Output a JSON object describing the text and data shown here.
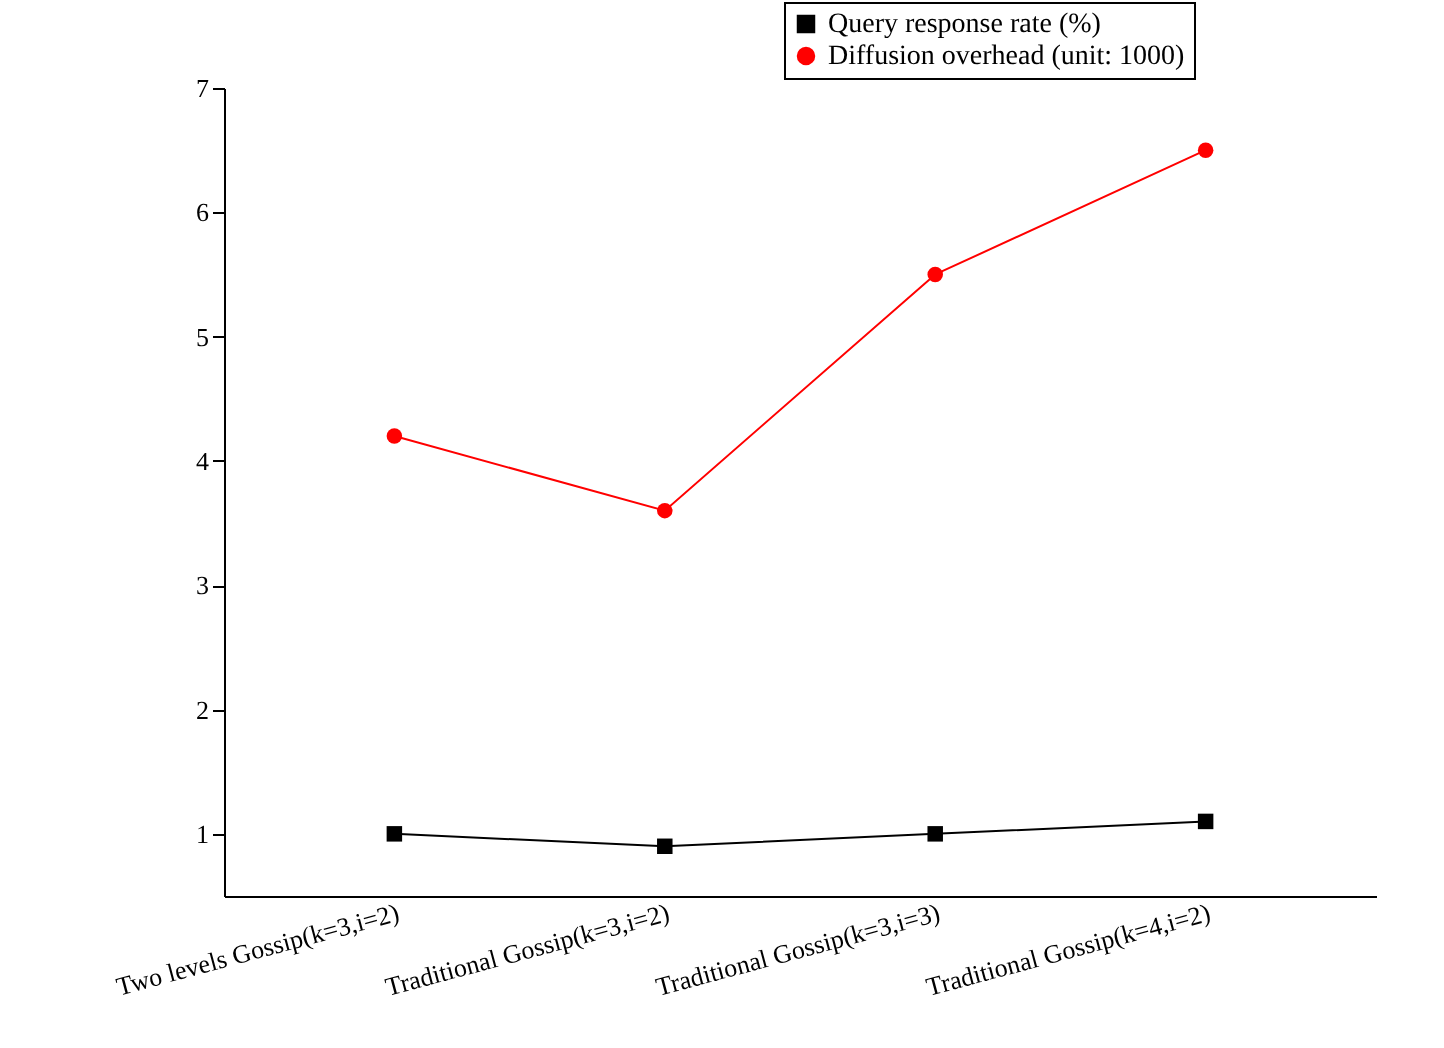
{
  "chart_data": {
    "type": "line",
    "categories": [
      "Two levels Gossip(k=3,i=2)",
      "Traditional Gossip(k=3,i=2)",
      "Traditional Gossip(k=3,i=3)",
      "Traditional Gossip(k=4,i=2)"
    ],
    "series": [
      {
        "name": "Query response rate (%)",
        "color": "#000000",
        "marker": "square",
        "values": [
          1.0,
          0.9,
          1.0,
          1.1
        ]
      },
      {
        "name": "Diffusion overhead (unit: 1000)",
        "color": "#ff0000",
        "marker": "circle",
        "values": [
          4.2,
          3.6,
          5.5,
          6.5
        ]
      }
    ],
    "ylim": [
      0.5,
      7
    ],
    "yticks": [
      1,
      2,
      3,
      4,
      5,
      6,
      7
    ],
    "grid": false,
    "legend": "top right",
    "line_style": "solid"
  }
}
